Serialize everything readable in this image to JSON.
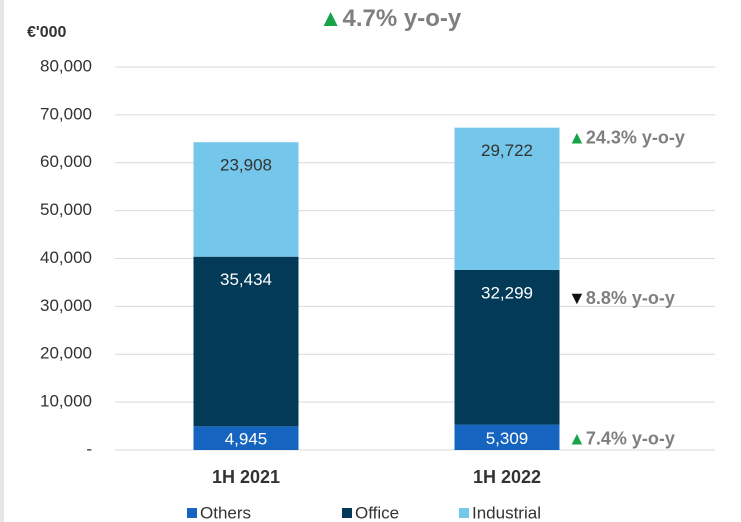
{
  "chart_data": {
    "type": "stacked_bar",
    "title": {
      "arrow": "▲",
      "text": "4.7% y-o-y"
    },
    "y_unit_label": "€'000",
    "categories": [
      "1H 2021",
      "1H 2022"
    ],
    "series": [
      {
        "name": "Others",
        "color": "#1565c0",
        "label_color": "#ffffff",
        "values": [
          4945,
          5309
        ],
        "value_labels": [
          "4,945",
          "5,309"
        ]
      },
      {
        "name": "Office",
        "color": "#023a57",
        "label_color": "#ffffff",
        "values": [
          35434,
          32299
        ],
        "value_labels": [
          "35,434",
          "32,299"
        ]
      },
      {
        "name": "Industrial",
        "color": "#74c6ea",
        "label_color": "#333333",
        "values": [
          23908,
          29722
        ],
        "value_labels": [
          "23,908",
          "29,722"
        ]
      }
    ],
    "annotations": [
      {
        "series": "Industrial",
        "arrow": "▲",
        "arrow_color": "#16a34a",
        "text": "24.3% y-o-y"
      },
      {
        "series": "Office",
        "arrow": "▼",
        "arrow_color": "#111111",
        "text": "8.8% y-o-y"
      },
      {
        "series": "Others",
        "arrow": "▲",
        "arrow_color": "#16a34a",
        "text": "7.4% y-o-y"
      }
    ],
    "ylim": [
      0,
      80000
    ],
    "yticks": [
      {
        "value": 0,
        "label": "-"
      },
      {
        "value": 10000,
        "label": "10,000"
      },
      {
        "value": 20000,
        "label": "20,000"
      },
      {
        "value": 30000,
        "label": "30,000"
      },
      {
        "value": 40000,
        "label": "40,000"
      },
      {
        "value": 50000,
        "label": "50,000"
      },
      {
        "value": 60000,
        "label": "60,000"
      },
      {
        "value": 70000,
        "label": "70,000"
      },
      {
        "value": 80000,
        "label": "80,000"
      }
    ],
    "grid": true,
    "legend": "bottom"
  }
}
